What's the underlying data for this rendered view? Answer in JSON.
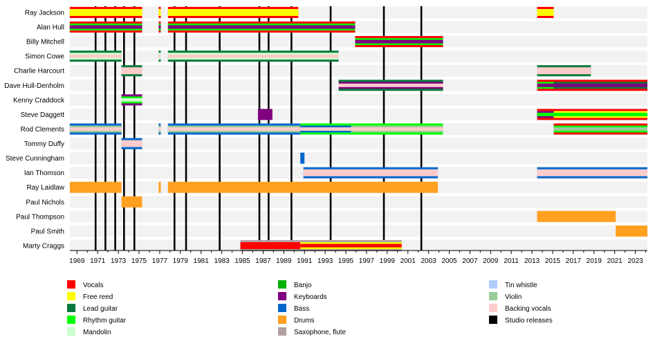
{
  "chart_data": {
    "type": "timeline",
    "xlim": [
      1968.3,
      2024.8
    ],
    "x_ticks": [
      1969,
      1971,
      1973,
      1975,
      1977,
      1979,
      1981,
      1983,
      1985,
      1987,
      1989,
      1991,
      1993,
      1995,
      1997,
      1999,
      2001,
      2003,
      2005,
      2007,
      2009,
      2011,
      2013,
      2015,
      2017,
      2019,
      2021,
      2023
    ],
    "roles": {
      "vocals": {
        "label": "Vocals",
        "color": "#ff0000"
      },
      "free_reed": {
        "label": "Free reed",
        "color": "#ffff00"
      },
      "lead_guitar": {
        "label": "Lead guitar",
        "color": "#0a7a3c"
      },
      "rhythm_guitar": {
        "label": "Rhythm guitar",
        "color": "#00ff00"
      },
      "mandolin": {
        "label": "Mandolin",
        "color": "#ccffcc"
      },
      "banjo": {
        "label": "Banjo",
        "color": "#00b000"
      },
      "keyboards": {
        "label": "Keyboards",
        "color": "#800080"
      },
      "bass": {
        "label": "Bass",
        "color": "#0066cc"
      },
      "drums": {
        "label": "Drums",
        "color": "#ffa020"
      },
      "sax": {
        "label": "Saxophone, flute",
        "color": "#b0a0a0"
      },
      "tin_whistle": {
        "label": "Tin whistle",
        "color": "#b0ccff"
      },
      "violin": {
        "label": "Violin",
        "color": "#99cc99"
      },
      "backing_vocals": {
        "label": "Backing vocals",
        "color": "#ffcccc"
      },
      "studio": {
        "label": "Studio releases",
        "color": "#000000"
      }
    },
    "legend_columns": [
      [
        "vocals",
        "free_reed",
        "lead_guitar",
        "rhythm_guitar",
        "mandolin"
      ],
      [
        "banjo",
        "keyboards",
        "bass",
        "drums",
        "sax"
      ],
      [
        "tin_whistle",
        "violin",
        "backing_vocals",
        "studio"
      ]
    ],
    "studio_releases": [
      1970.8,
      1971.75,
      1972.7,
      1973.55,
      1974.55,
      1978.43,
      1979.55,
      1982.8,
      1986.64,
      1987.53,
      1989.74,
      1993.53,
      1998.68,
      2002.3
    ],
    "members": [
      {
        "name": "Ray Jackson",
        "spans": [
          [
            1968.3,
            1975.3,
            [
              "vocals",
              "free_reed"
            ]
          ],
          [
            1976.9,
            1977.1,
            [
              "vocals",
              "free_reed"
            ]
          ],
          [
            1977.8,
            1990.4,
            [
              "vocals",
              "free_reed"
            ]
          ],
          [
            2013.5,
            2015.1,
            [
              "vocals",
              "free_reed"
            ]
          ]
        ]
      },
      {
        "name": "Alan Hull",
        "spans": [
          [
            1968.3,
            1975.3,
            [
              "vocals",
              "rhythm_guitar",
              "keyboards"
            ]
          ],
          [
            1976.9,
            1977.1,
            [
              "vocals",
              "rhythm_guitar",
              "keyboards"
            ]
          ],
          [
            1977.8,
            1995.9,
            [
              "vocals",
              "rhythm_guitar",
              "keyboards"
            ]
          ]
        ]
      },
      {
        "name": "Billy Mitchell",
        "spans": [
          [
            1995.9,
            2004.4,
            [
              "vocals",
              "rhythm_guitar",
              "keyboards"
            ]
          ]
        ]
      },
      {
        "name": "Simon Cowe",
        "spans": [
          [
            1968.3,
            1973.3,
            [
              "lead_guitar",
              "mandolin",
              "backing_vocals"
            ]
          ],
          [
            1976.9,
            1977.1,
            [
              "lead_guitar",
              "mandolin",
              "backing_vocals"
            ]
          ],
          [
            1977.8,
            1994.3,
            [
              "lead_guitar",
              "mandolin",
              "backing_vocals"
            ]
          ]
        ]
      },
      {
        "name": "Charlie Harcourt",
        "spans": [
          [
            1973.3,
            1975.3,
            [
              "lead_guitar",
              "backing_vocals"
            ]
          ],
          [
            2013.5,
            2018.7,
            [
              "lead_guitar",
              "backing_vocals"
            ]
          ]
        ]
      },
      {
        "name": "Dave Hull-Denholm",
        "spans": [
          [
            1994.3,
            2004.4,
            [
              "lead_guitar",
              "keyboards",
              "backing_vocals"
            ]
          ],
          [
            2013.5,
            2015.1,
            [
              "vocals",
              "rhythm_guitar",
              "keyboards"
            ]
          ],
          [
            2015.1,
            2024.2,
            [
              "vocals",
              "lead_guitar",
              "keyboards"
            ]
          ]
        ]
      },
      {
        "name": "Kenny Craddock",
        "spans": [
          [
            1973.3,
            1975.3,
            [
              "keyboards",
              "rhythm_guitar",
              "mandolin"
            ]
          ]
        ]
      },
      {
        "name": "Steve Daggett",
        "spans": [
          [
            1986.5,
            1987.9,
            [
              "keyboards"
            ]
          ],
          [
            2013.5,
            2015.1,
            [
              "vocals",
              "keyboards",
              "rhythm_guitar"
            ]
          ],
          [
            2015.1,
            2024.2,
            [
              "vocals",
              "free_reed",
              "rhythm_guitar"
            ]
          ]
        ]
      },
      {
        "name": "Rod Clements",
        "spans": [
          [
            1968.3,
            1973.3,
            [
              "bass",
              "violin",
              "backing_vocals"
            ]
          ],
          [
            1976.9,
            1977.1,
            [
              "bass",
              "violin",
              "backing_vocals"
            ]
          ],
          [
            1977.8,
            1990.6,
            [
              "bass",
              "violin",
              "backing_vocals"
            ]
          ],
          [
            1990.6,
            1995.5,
            [
              "rhythm_guitar",
              "bass",
              "backing_vocals"
            ]
          ],
          [
            1995.5,
            2004.4,
            [
              "rhythm_guitar",
              "violin",
              "backing_vocals"
            ]
          ],
          [
            2015.1,
            2024.2,
            [
              "vocals",
              "rhythm_guitar",
              "violin"
            ]
          ]
        ]
      },
      {
        "name": "Tommy Duffy",
        "spans": [
          [
            1973.3,
            1975.3,
            [
              "bass",
              "backing_vocals"
            ]
          ]
        ]
      },
      {
        "name": "Steve Cunningham",
        "spans": [
          [
            1990.6,
            1991.0,
            [
              "bass"
            ]
          ]
        ]
      },
      {
        "name": "Ian Thomson",
        "spans": [
          [
            1990.9,
            2003.9,
            [
              "bass",
              "backing_vocals"
            ]
          ],
          [
            2013.5,
            2024.2,
            [
              "bass",
              "backing_vocals"
            ]
          ]
        ]
      },
      {
        "name": "Ray Laidlaw",
        "spans": [
          [
            1968.3,
            1973.3,
            [
              "drums"
            ]
          ],
          [
            1976.9,
            1977.1,
            [
              "drums"
            ]
          ],
          [
            1977.8,
            2003.9,
            [
              "drums"
            ]
          ]
        ]
      },
      {
        "name": "Paul Nichols",
        "spans": [
          [
            1973.3,
            1975.3,
            [
              "drums"
            ]
          ]
        ]
      },
      {
        "name": "Paul Thompson",
        "spans": [
          [
            2013.5,
            2021.1,
            [
              "drums"
            ]
          ]
        ]
      },
      {
        "name": "Paul Smith",
        "spans": [
          [
            2021.1,
            2024.2,
            [
              "drums"
            ]
          ]
        ]
      },
      {
        "name": "Marty Craggs",
        "spans": [
          [
            1984.8,
            1990.6,
            [
              "sax",
              "vocals"
            ]
          ],
          [
            1990.6,
            2000.4,
            [
              "sax",
              "free_reed",
              "vocals"
            ]
          ]
        ]
      }
    ]
  }
}
